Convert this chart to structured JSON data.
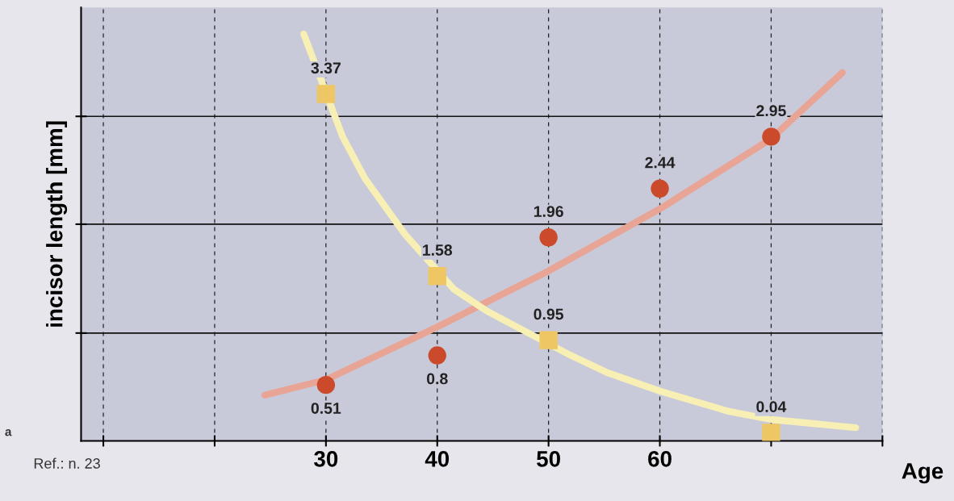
{
  "chart_data": {
    "type": "scatter",
    "ylabel": "incisor length [mm]",
    "xlabel": "Age",
    "annotations": [
      "a",
      "Ref.: n. 23"
    ],
    "xlim": [
      8,
      80
    ],
    "xticks": [
      {
        "value": 10,
        "label": null
      },
      {
        "value": 20,
        "label": null
      },
      30,
      40,
      50,
      60,
      {
        "value": 70,
        "label": null
      },
      {
        "value": 80,
        "label": null
      }
    ],
    "ylim": [
      -0.04,
      4.22
    ],
    "yticks": [
      {
        "value": 1.02,
        "label": null
      },
      {
        "value": 2.09,
        "label": null
      },
      {
        "value": 3.15,
        "label": null
      }
    ],
    "tick_labels": "x",
    "grid": true,
    "legend": false,
    "series": [
      {
        "type": "line",
        "color": "#e8a494",
        "marker": "none",
        "x": [
          24.5,
          30,
          40,
          50,
          60,
          70,
          76.4
        ],
        "values": [
          0.41,
          0.56,
          1.08,
          1.63,
          2.24,
          2.93,
          3.58
        ]
      },
      {
        "type": "line",
        "color": "#f7efb4",
        "marker": "none",
        "x": [
          28.0,
          31.5,
          33.5,
          37.1,
          41.5,
          44.4,
          52,
          55.3,
          60,
          66.2,
          70,
          77.6
        ],
        "values": [
          3.96,
          2.95,
          2.54,
          1.99,
          1.45,
          1.24,
          0.8,
          0.63,
          0.45,
          0.25,
          0.17,
          0.09
        ]
      },
      {
        "color": "#cc4a2c",
        "marker": "circle",
        "x": [
          30,
          40,
          50,
          60,
          70
        ],
        "values": [
          0.51,
          0.8,
          1.96,
          2.44,
          2.95
        ],
        "value_labels": [
          "0.51",
          "0.8",
          "1.96",
          "2.44",
          "2.95"
        ]
      },
      {
        "color": "#eec663",
        "marker": "square",
        "x": [
          30,
          40,
          50,
          70
        ],
        "values": [
          3.37,
          1.58,
          0.95,
          0.04
        ],
        "value_labels": [
          "3.37",
          "1.58",
          "0.95",
          "0.04"
        ]
      }
    ]
  }
}
